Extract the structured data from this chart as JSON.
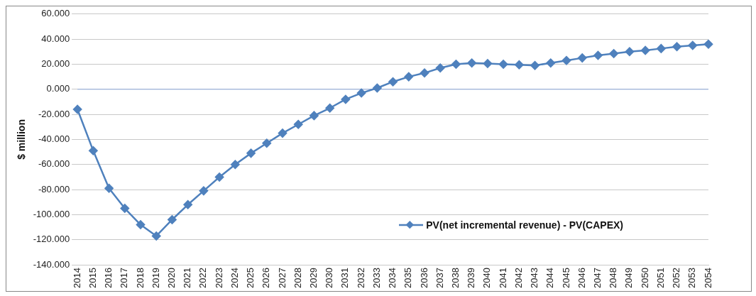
{
  "chart_data": {
    "type": "line",
    "ylabel": "$ million",
    "categories": [
      "2014",
      "2015",
      "2016",
      "2017",
      "2018",
      "2019",
      "2020",
      "2021",
      "2022",
      "2023",
      "2024",
      "2025",
      "2026",
      "2027",
      "2028",
      "2029",
      "2030",
      "2031",
      "2032",
      "2033",
      "2034",
      "2035",
      "2036",
      "2037",
      "2038",
      "2039",
      "2040",
      "2041",
      "2042",
      "2043",
      "2044",
      "2045",
      "2046",
      "2047",
      "2048",
      "2049",
      "2050",
      "2051",
      "2052",
      "2053",
      "2054"
    ],
    "series": [
      {
        "name": "PV(net incremental revenue) - PV(CAPEX)",
        "color": "#4f81bd",
        "values": [
          -16,
          -49,
          -79,
          -95,
          -108,
          -117,
          -104,
          -92,
          -81,
          -70,
          -60,
          -51,
          -43,
          -35,
          -28,
          -21,
          -15,
          -8,
          -3,
          1,
          6,
          10,
          13,
          17,
          20,
          21,
          20.5,
          20,
          19.5,
          19,
          21,
          23,
          25,
          27,
          28.5,
          30,
          31,
          32.5,
          34,
          35,
          36
        ]
      }
    ],
    "ylim": [
      -140,
      60
    ],
    "yticks": [
      {
        "value": -140,
        "label": "-140.000"
      },
      {
        "value": -120,
        "label": "-120.000"
      },
      {
        "value": -100,
        "label": "-100.000"
      },
      {
        "value": -80,
        "label": "-80.000"
      },
      {
        "value": -60,
        "label": "-60.000"
      },
      {
        "value": -40,
        "label": "-40.000"
      },
      {
        "value": -20,
        "label": "-20.000"
      },
      {
        "value": 0,
        "label": "0.000"
      },
      {
        "value": 20,
        "label": "20.000"
      },
      {
        "value": 40,
        "label": "40.000"
      },
      {
        "value": 60,
        "label": "60.000"
      }
    ],
    "ref_lines": [
      {
        "axis": "y",
        "value": 0,
        "color": "#8eaadb"
      }
    ],
    "grid": "y",
    "legend": "bottom right",
    "marker": "diamond",
    "line_style": "solid"
  }
}
